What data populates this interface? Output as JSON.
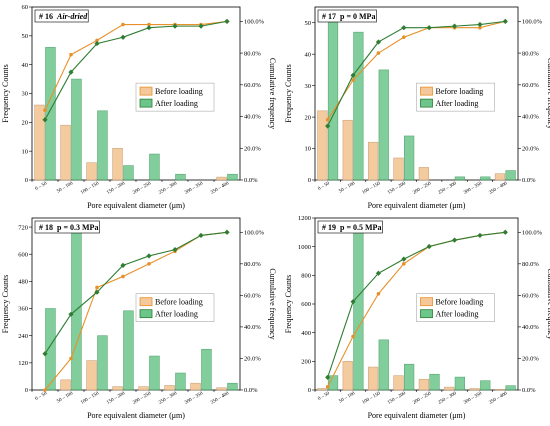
{
  "colors": {
    "before_bar": "#f4c89a",
    "after_bar": "#6cc58a",
    "before_line": "#e8902a",
    "after_line": "#2e7d32"
  },
  "chart_data": [
    {
      "type": "bar",
      "title_prefix": "# 16",
      "title_main": "Air-dried",
      "title_italic": true,
      "xlabel": "Pore equivalent diameter (μm)",
      "ylabel": "Frequency Counts",
      "y2label": "Cumulative frequency",
      "categories": [
        "0 – 50",
        "50 – 100",
        "100 – 150",
        "150 – 200",
        "200 – 250",
        "250 – 300",
        "300 – 350",
        "350 – 400"
      ],
      "ylim": [
        0,
        60
      ],
      "yticks": [
        0,
        10,
        20,
        30,
        40,
        50,
        60
      ],
      "y2ticks": [
        "0.0%",
        "20.0%",
        "40.0%",
        "60.0%",
        "80.0%",
        "100.0%"
      ],
      "legend": [
        "Before loading",
        "After loading"
      ],
      "series": [
        {
          "name": "Before loading",
          "values": [
            26,
            19,
            6,
            11,
            0,
            0,
            0,
            1
          ],
          "cumulative": [
            44,
            79,
            88,
            98,
            98,
            98,
            98,
            100
          ]
        },
        {
          "name": "After loading",
          "values": [
            46,
            35,
            24,
            5,
            9,
            2,
            0,
            2
          ],
          "cumulative": [
            38,
            68,
            86,
            90,
            96,
            97,
            97,
            100
          ]
        }
      ]
    },
    {
      "type": "bar",
      "title_prefix": "# 17",
      "title_main": "p = 0 MPa",
      "title_italic": false,
      "xlabel": "Pore equivalent diameter (μm)",
      "ylabel": "Frequency Counts",
      "y2label": "Cumulative frequency",
      "categories": [
        "0 – 50",
        "50 – 100",
        "100 – 150",
        "150 – 200",
        "200 – 250",
        "250 – 300",
        "300 – 350",
        "350 – 400"
      ],
      "ylim": [
        0,
        55
      ],
      "yticks": [
        0,
        10,
        20,
        30,
        40,
        50
      ],
      "y2ticks": [
        "0.0%",
        "20.0%",
        "40.0%",
        "60.0%",
        "80.0%",
        "100.0%"
      ],
      "legend": [
        "Before loading",
        "After loading"
      ],
      "series": [
        {
          "name": "Before loading",
          "values": [
            22,
            19,
            12,
            7,
            4,
            0,
            0,
            2
          ],
          "cumulative": [
            38,
            63,
            80,
            90,
            96,
            96,
            96,
            100
          ]
        },
        {
          "name": "After loading",
          "values": [
            52,
            47,
            35,
            14,
            0,
            1,
            1,
            3
          ],
          "cumulative": [
            34,
            66,
            87,
            96,
            96,
            97,
            98,
            100
          ]
        }
      ]
    },
    {
      "type": "bar",
      "title_prefix": "# 18",
      "title_main": "p = 0.3 MPa",
      "title_italic": false,
      "xlabel": "Pore equivalent diameter (μm)",
      "ylabel": "Frequency Counts",
      "y2label": "Cumulative frequency",
      "categories": [
        "0 – 50",
        "50 – 100",
        "100 – 150",
        "150 – 200",
        "200 – 250",
        "250 – 300",
        "300 – 350",
        "350 – 400"
      ],
      "ylim": [
        0,
        760
      ],
      "yticks": [
        0,
        120,
        240,
        360,
        480,
        600,
        720
      ],
      "y2ticks": [
        "0.0%",
        "20.0%",
        "40.0%",
        "60.0%",
        "80.0%",
        "100.0%"
      ],
      "legend": [
        "Before loading",
        "After loading"
      ],
      "series": [
        {
          "name": "Before loading",
          "values": [
            0,
            45,
            130,
            15,
            15,
            20,
            30,
            10
          ],
          "cumulative": [
            0,
            20,
            65,
            72,
            80,
            88,
            98,
            100
          ]
        },
        {
          "name": "After loading",
          "values": [
            360,
            710,
            240,
            350,
            150,
            75,
            180,
            30
          ],
          "cumulative": [
            23,
            48,
            62,
            79,
            85,
            89,
            98,
            100
          ]
        }
      ]
    },
    {
      "type": "bar",
      "title_prefix": "# 19",
      "title_main": "p = 0.5 MPa",
      "title_italic": false,
      "xlabel": "Pore equivalent diameter (μm)",
      "ylabel": "Frequency Counts",
      "y2label": "Cumulative frequency",
      "categories": [
        "0 – 50",
        "50 – 100",
        "100 – 150",
        "150 – 200",
        "200 – 250",
        "250 – 300",
        "300 – 350",
        "350 – 400"
      ],
      "ylim": [
        0,
        1200
      ],
      "yticks": [
        0,
        200,
        400,
        600,
        800,
        1000,
        1200
      ],
      "y2ticks": [
        "0.0%",
        "20.0%",
        "40.0%",
        "60.0%",
        "80.0%",
        "100.0%"
      ],
      "legend": [
        "Before loading",
        "After loading"
      ],
      "series": [
        {
          "name": "Before loading",
          "values": [
            10,
            200,
            160,
            100,
            75,
            20,
            10,
            5
          ],
          "cumulative": [
            2,
            34,
            61,
            80,
            91,
            95,
            98,
            100
          ]
        },
        {
          "name": "After loading",
          "values": [
            100,
            1140,
            350,
            180,
            110,
            90,
            65,
            30
          ],
          "cumulative": [
            8,
            56,
            74,
            83,
            91,
            95,
            98,
            100
          ]
        }
      ]
    }
  ]
}
